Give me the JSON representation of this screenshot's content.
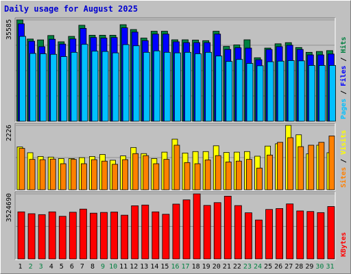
{
  "chart_data": {
    "type": "bar",
    "title": "Daily usage for August 2025",
    "days": [
      "1",
      "2",
      "3",
      "4",
      "5",
      "6",
      "7",
      "8",
      "9",
      "10",
      "11",
      "12",
      "13",
      "14",
      "15",
      "16",
      "17",
      "18",
      "19",
      "20",
      "21",
      "22",
      "23",
      "24",
      "25",
      "26",
      "27",
      "28",
      "29",
      "30",
      "31"
    ],
    "weekend_days": [
      "2",
      "3",
      "9",
      "10",
      "16",
      "17",
      "23",
      "24",
      "30",
      "31"
    ],
    "colors": {
      "hits": "#008040",
      "files": "#0000ff",
      "pages": "#00c0ff",
      "visits": "#ffff00",
      "sites": "#ff8000",
      "kbytes": "#ff0000",
      "weekday_label": "#000000",
      "weekend_label": "#008040"
    },
    "panels": [
      {
        "id": "hits-files-pages",
        "max_label": "35585",
        "ylim": [
          0,
          35585
        ],
        "legend": [
          {
            "text": "Pages",
            "color": "#00c0ff"
          },
          {
            "text": " / ",
            "color": "#000000"
          },
          {
            "text": "Files",
            "color": "#0000ff"
          },
          {
            "text": " / ",
            "color": "#000000"
          },
          {
            "text": "Hits",
            "color": "#008040"
          }
        ],
        "series": [
          {
            "name": "Hits",
            "color": "#008040",
            "values": [
              35585,
              28870,
              28560,
              30100,
              27900,
              29800,
              33700,
              30200,
              30200,
              30200,
              33900,
              32200,
              29200,
              31600,
              31600,
              28600,
              28600,
              28500,
              28300,
              31600,
              26300,
              26800,
              28600,
              22300,
              25700,
              27200,
              27600,
              25900,
              24200,
              24500,
              24800
            ]
          },
          {
            "name": "Files",
            "color": "#0000ff",
            "values": [
              34200,
              28100,
              26200,
              28800,
              27100,
              28900,
              32600,
              29400,
              29200,
              29400,
              32800,
              31300,
              28300,
              30600,
              30600,
              27900,
              27600,
              27600,
              27600,
              30600,
              25200,
              25800,
              25700,
              21600,
              25200,
              26200,
              26700,
              25200,
              23300,
              23300,
              23600
            ]
          },
          {
            "name": "Pages",
            "color": "#00c0ff",
            "values": [
              29800,
              23800,
              23700,
              23500,
              22700,
              24200,
              27000,
              24600,
              24500,
              24000,
              26900,
              26500,
              24200,
              24700,
              24200,
              24000,
              24200,
              23700,
              24200,
              22900,
              21000,
              21700,
              20300,
              19500,
              20900,
              21100,
              21300,
              21200,
              19600,
              19600,
              19600
            ]
          }
        ]
      },
      {
        "id": "visits-sites",
        "max_label": "2226",
        "ylim": [
          0,
          2226
        ],
        "legend": [
          {
            "text": "Sites",
            "color": "#ff8000"
          },
          {
            "text": " / ",
            "color": "#000000"
          },
          {
            "text": "Visits",
            "color": "#ffff00"
          }
        ],
        "series": [
          {
            "name": "Visits",
            "color": "#ffff00",
            "values": [
              1480,
              1280,
              1150,
              1130,
              1080,
              1080,
              1110,
              1150,
              1220,
              1020,
              1170,
              1460,
              1250,
              1080,
              1300,
              1750,
              1270,
              1320,
              1320,
              1520,
              1290,
              1300,
              1320,
              1160,
              1510,
              1590,
              2226,
              1900,
              1240,
              1540,
              1280
            ]
          },
          {
            "name": "Sites",
            "color": "#ff8000",
            "values": [
              1430,
              1050,
              1040,
              1060,
              900,
              1050,
              900,
              1040,
              990,
              880,
              1040,
              1250,
              1180,
              900,
              1050,
              1540,
              940,
              900,
              1030,
              1180,
              960,
              990,
              1050,
              750,
              1200,
              1640,
              1800,
              1490,
              1540,
              1640,
              1860
            ]
          }
        ]
      },
      {
        "id": "kbytes",
        "max_label": "3524690",
        "ylim": [
          0,
          3524690
        ],
        "legend": [
          {
            "text": "KBytes",
            "color": "#ff0000"
          }
        ],
        "series": [
          {
            "name": "KBytes",
            "color": "#ff0000",
            "values": [
              2550000,
              2450000,
              2400000,
              2550000,
              2310000,
              2530000,
              2700000,
              2480000,
              2520000,
              2540000,
              2370000,
              2880000,
              2920000,
              2550000,
              2420000,
              2970000,
              3200000,
              3524690,
              2900000,
              3050000,
              3400000,
              2890000,
              2500000,
              2110000,
              2680000,
              2730000,
              2980000,
              2600000,
              2570000,
              2510000,
              2840000
            ]
          }
        ]
      }
    ]
  }
}
